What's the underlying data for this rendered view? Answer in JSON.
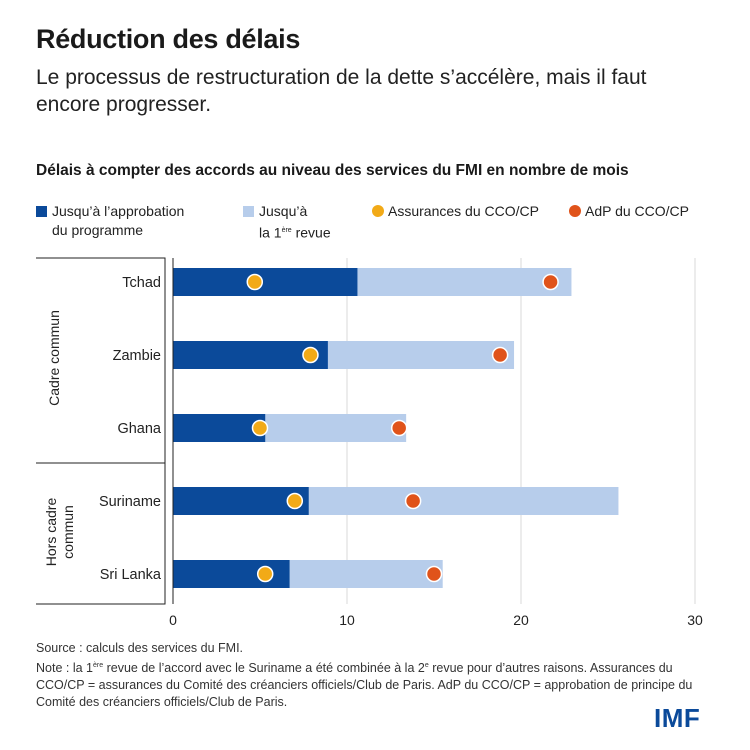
{
  "header": {
    "title": "Réduction des délais",
    "subtitle": "Le processus de restructuration de la dette s’accélère, mais il faut encore progresser."
  },
  "chart_data": {
    "type": "bar",
    "stacked": true,
    "orientation": "horizontal",
    "title": "Délais à compter des accords au niveau des services du FMI en nombre de mois",
    "categories": [
      "Tchad",
      "Zambie",
      "Ghana",
      "Suriname",
      "Sri Lanka"
    ],
    "groups": [
      {
        "label": "Cadre commun",
        "categories": [
          "Tchad",
          "Zambie",
          "Ghana"
        ]
      },
      {
        "label": "Hors cadre commun",
        "categories": [
          "Suriname",
          "Sri Lanka"
        ]
      }
    ],
    "series": [
      {
        "name": "Jusqu’à l’approbation du programme",
        "kind": "bar",
        "color": "#0b4a9a",
        "values": [
          10.6,
          8.9,
          5.3,
          7.8,
          6.7
        ]
      },
      {
        "name": "Jusqu’à la 1ère revue",
        "kind": "bar",
        "color": "#b7cdeb",
        "values": [
          22.9,
          19.6,
          13.4,
          25.6,
          15.5
        ]
      },
      {
        "name": "Assurances du CCO/CP",
        "kind": "dot",
        "color": "#f2aa17",
        "values": [
          4.7,
          7.9,
          5.0,
          7.0,
          5.3
        ]
      },
      {
        "name": "AdP du CCO/CP",
        "kind": "dot",
        "color": "#e0531a",
        "values": [
          21.7,
          18.8,
          13.0,
          13.8,
          15.0
        ]
      }
    ],
    "xlim": [
      0,
      30
    ],
    "xticks": [
      0,
      10,
      20,
      30
    ],
    "grid": true
  },
  "legend": {
    "item1_line1": "Jusqu’à l’approbation",
    "item1_line2": "du programme",
    "item2_line1": "Jusqu’à",
    "item2_line2_pre": "la 1",
    "item2_line2_sup": "ère",
    "item2_line2_post": " revue",
    "item3": "Assurances du CCO/CP",
    "item4": "AdP du CCO/CP"
  },
  "footer": {
    "source": "Source : calculs des services du FMI.",
    "note_pre": "Note : la 1",
    "note_sup1": "ère",
    "note_mid": " revue de l’accord avec le Suriname a été combinée à la 2",
    "note_sup2": "e",
    "note_post": " revue pour d’autres raisons. Assurances du CCO/CP = assurances du Comité des créanciers officiels/Club de Paris. AdP du CCO/CP = approbation de principe du Comité des créanciers officiels/Club de Paris.",
    "logo": "IMF"
  }
}
